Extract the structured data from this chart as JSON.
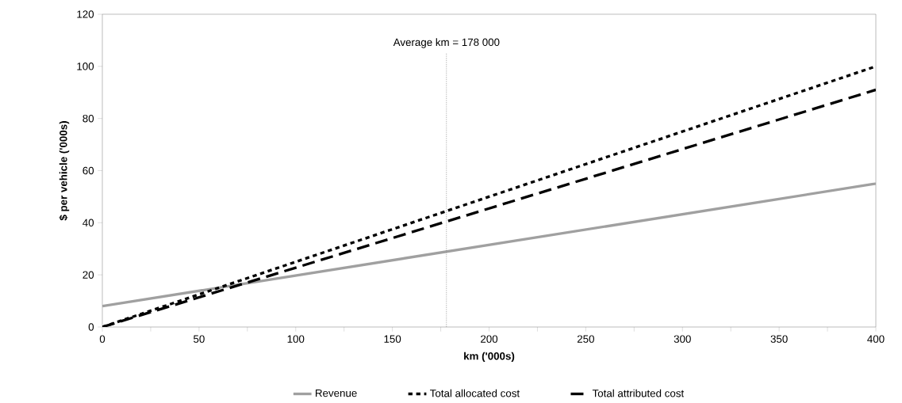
{
  "chart_data": {
    "type": "line",
    "xlabel": "km ('000s)",
    "ylabel": "$ per vehicle ('000s)",
    "x": [
      0,
      400
    ],
    "series": [
      {
        "name": "Revenue",
        "color": "#a0a0a0",
        "values": [
          8,
          55
        ],
        "line_style": "solid"
      },
      {
        "name": "Total allocated cost",
        "color": "#000000",
        "values": [
          0,
          100
        ],
        "line_style": "dotted"
      },
      {
        "name": "Total attributed cost",
        "color": "#000000",
        "values": [
          0,
          91
        ],
        "line_style": "dashed"
      }
    ],
    "xlim": [
      0,
      400
    ],
    "xticks": [
      0,
      {
        "value": 25,
        "label": null
      },
      50,
      {
        "value": 75,
        "label": null
      },
      100,
      {
        "value": 125,
        "label": null
      },
      150,
      {
        "value": 175,
        "label": null
      },
      200,
      {
        "value": 225,
        "label": null
      },
      250,
      {
        "value": 275,
        "label": null
      },
      300,
      {
        "value": 325,
        "label": null
      },
      350,
      {
        "value": 375,
        "label": null
      },
      400
    ],
    "ylim": [
      0,
      120
    ],
    "yticks": [
      0,
      20,
      40,
      60,
      80,
      100,
      120
    ],
    "ref_lines": [
      {
        "axis": "x",
        "value": 178,
        "label": "Average km = 178 000",
        "color": "#808080",
        "line_style": "dotted"
      }
    ],
    "legend": "bottom",
    "grid": false,
    "marker": "none"
  }
}
